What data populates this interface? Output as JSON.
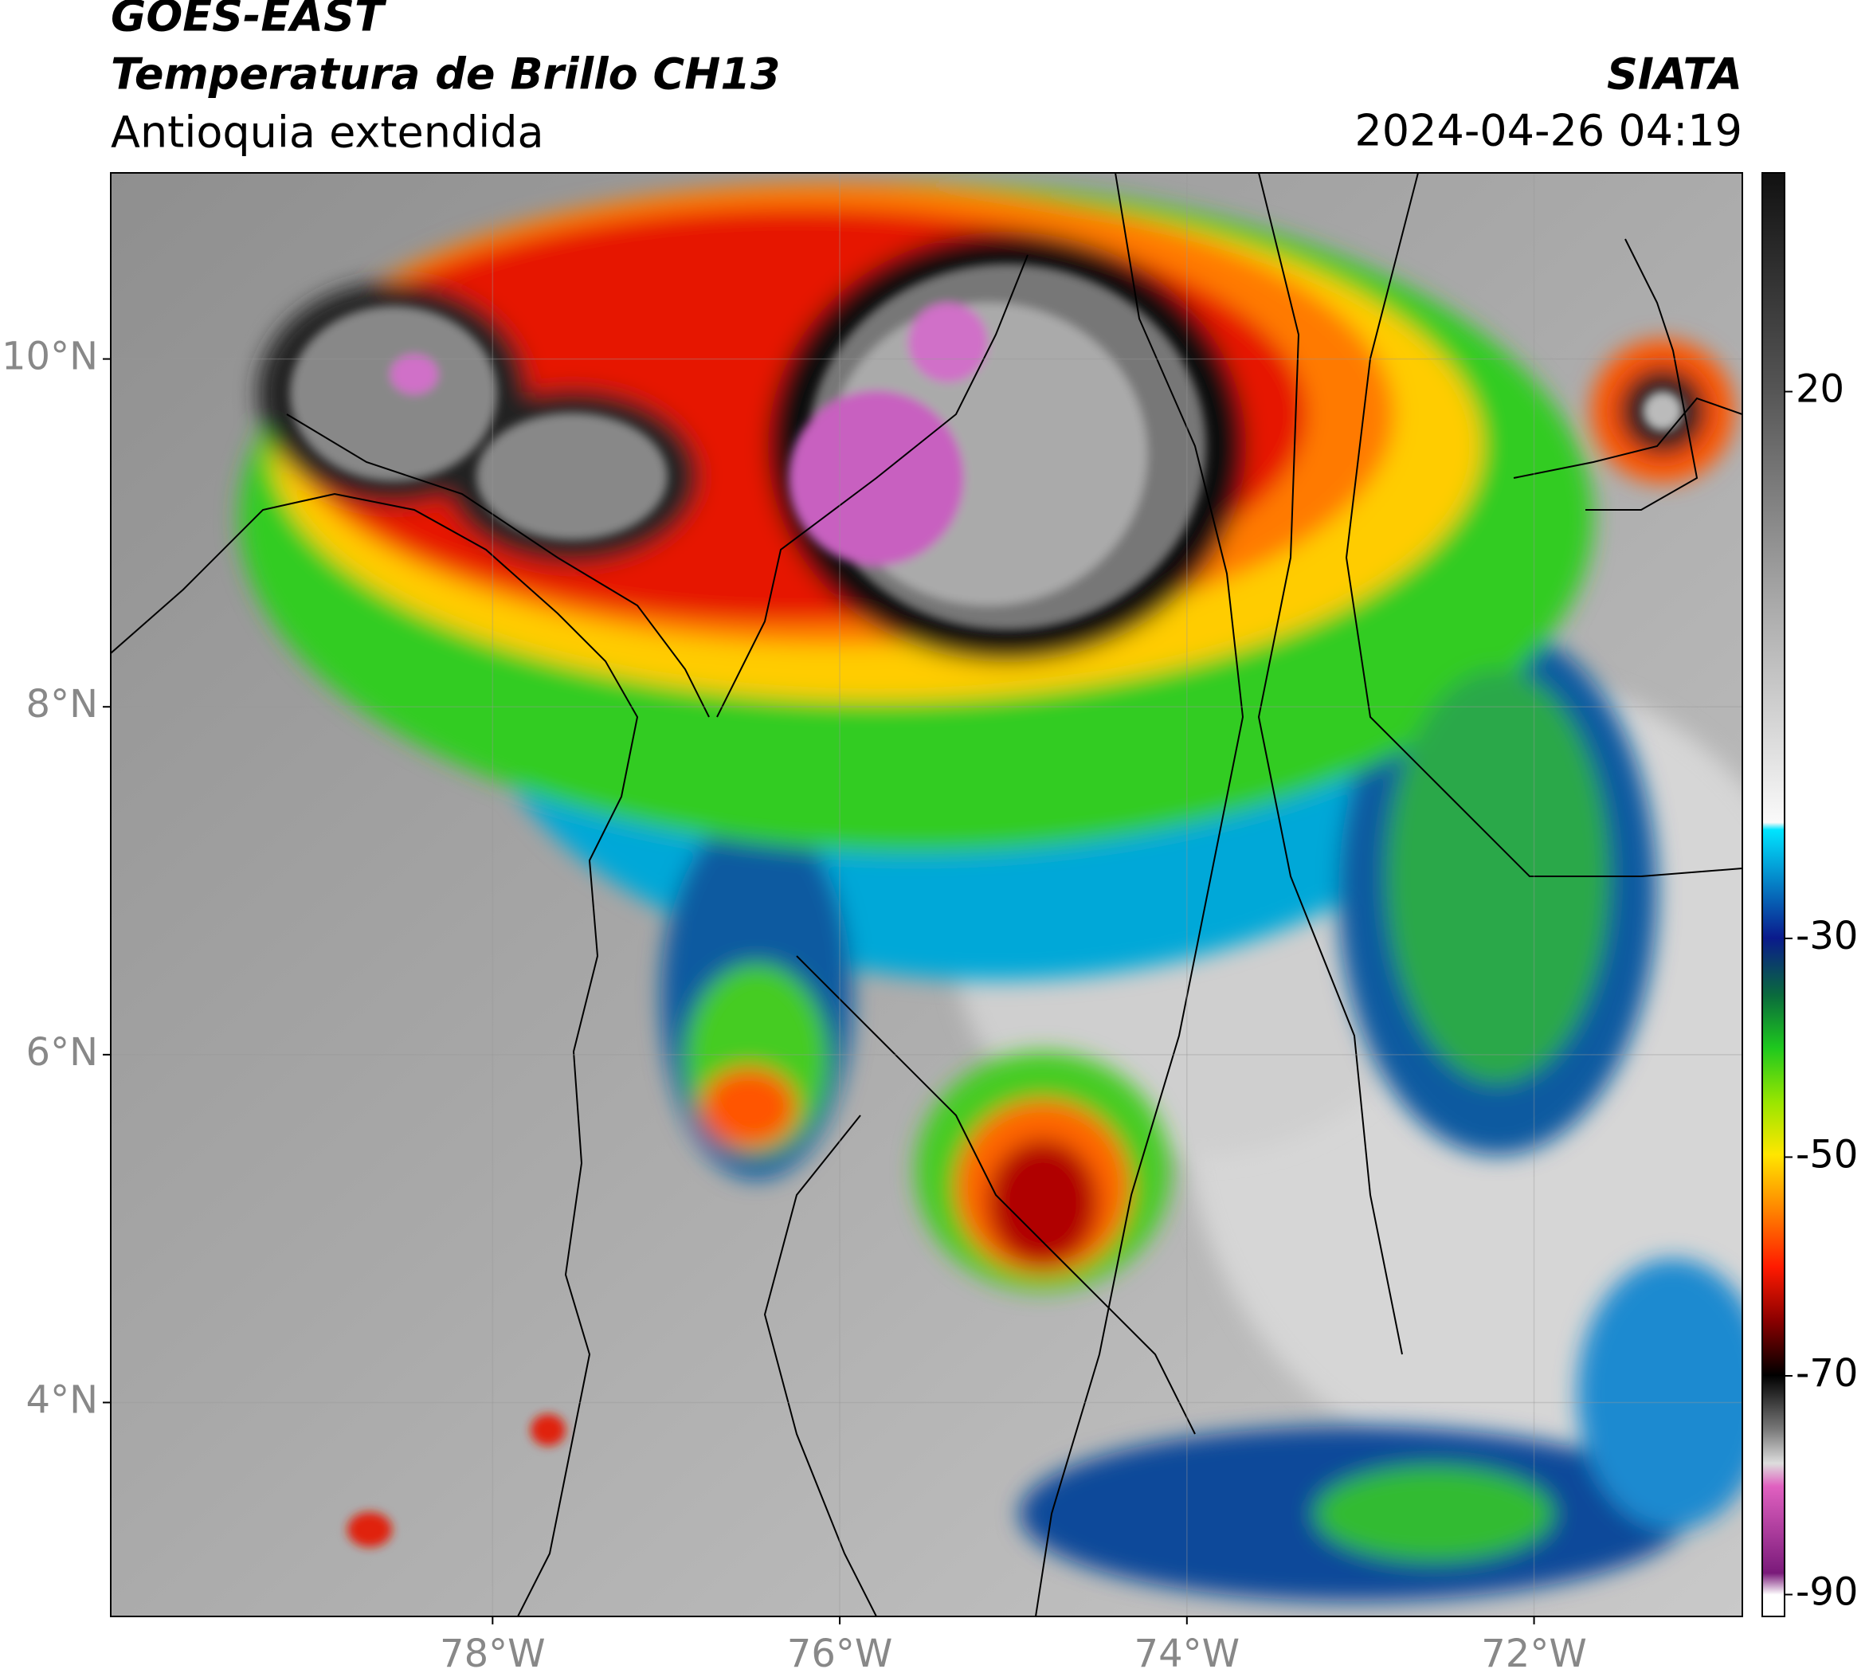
{
  "header": {
    "source": "GOES-EAST",
    "title": "Temperatura de Brillo CH13",
    "region": "Antioquia extendida",
    "agency": "SIATA",
    "datetime": "2024-04-26 04:19"
  },
  "map": {
    "xlim": [
      -80.2,
      -70.8
    ],
    "ylim": [
      2.77,
      11.07
    ],
    "grid": true,
    "xticks": [
      {
        "value": -78,
        "label": "78°W"
      },
      {
        "value": -76,
        "label": "76°W"
      },
      {
        "value": -74,
        "label": "74°W"
      },
      {
        "value": -72,
        "label": "72°W"
      }
    ],
    "yticks": [
      {
        "value": 10,
        "label": "10°N"
      },
      {
        "value": 8,
        "label": "8°N"
      },
      {
        "value": 6,
        "label": "6°N"
      },
      {
        "value": 4,
        "label": "4°N"
      }
    ]
  },
  "colorbar": {
    "lim": [
      -92,
      40
    ],
    "ticks": [
      20,
      -30,
      -50,
      -70,
      -90
    ]
  }
}
